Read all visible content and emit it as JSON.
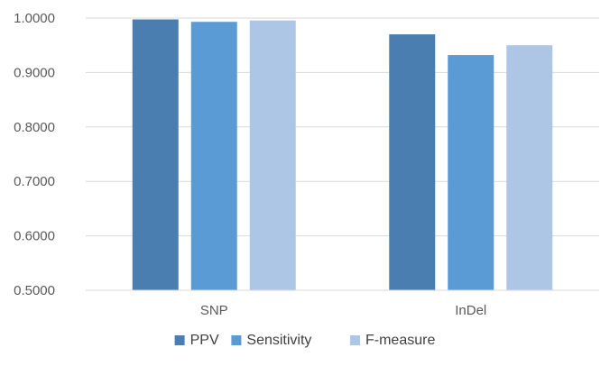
{
  "chart_data": {
    "type": "bar",
    "categories": [
      "SNP",
      "InDel"
    ],
    "series": [
      {
        "name": "PPV",
        "values": [
          0.9975,
          0.97
        ],
        "color": "#4a7eb0"
      },
      {
        "name": "Sensitivity",
        "values": [
          0.993,
          0.932
        ],
        "color": "#5b9bd5"
      },
      {
        "name": "F-measure",
        "values": [
          0.9955,
          0.95
        ],
        "color": "#adc6e5"
      }
    ],
    "ylim": [
      0.5,
      1.0
    ],
    "yticks": [
      "0.5000",
      "0.6000",
      "0.7000",
      "0.8000",
      "0.9000",
      "1.0000"
    ],
    "grid": true,
    "legend_position": "bottom"
  }
}
